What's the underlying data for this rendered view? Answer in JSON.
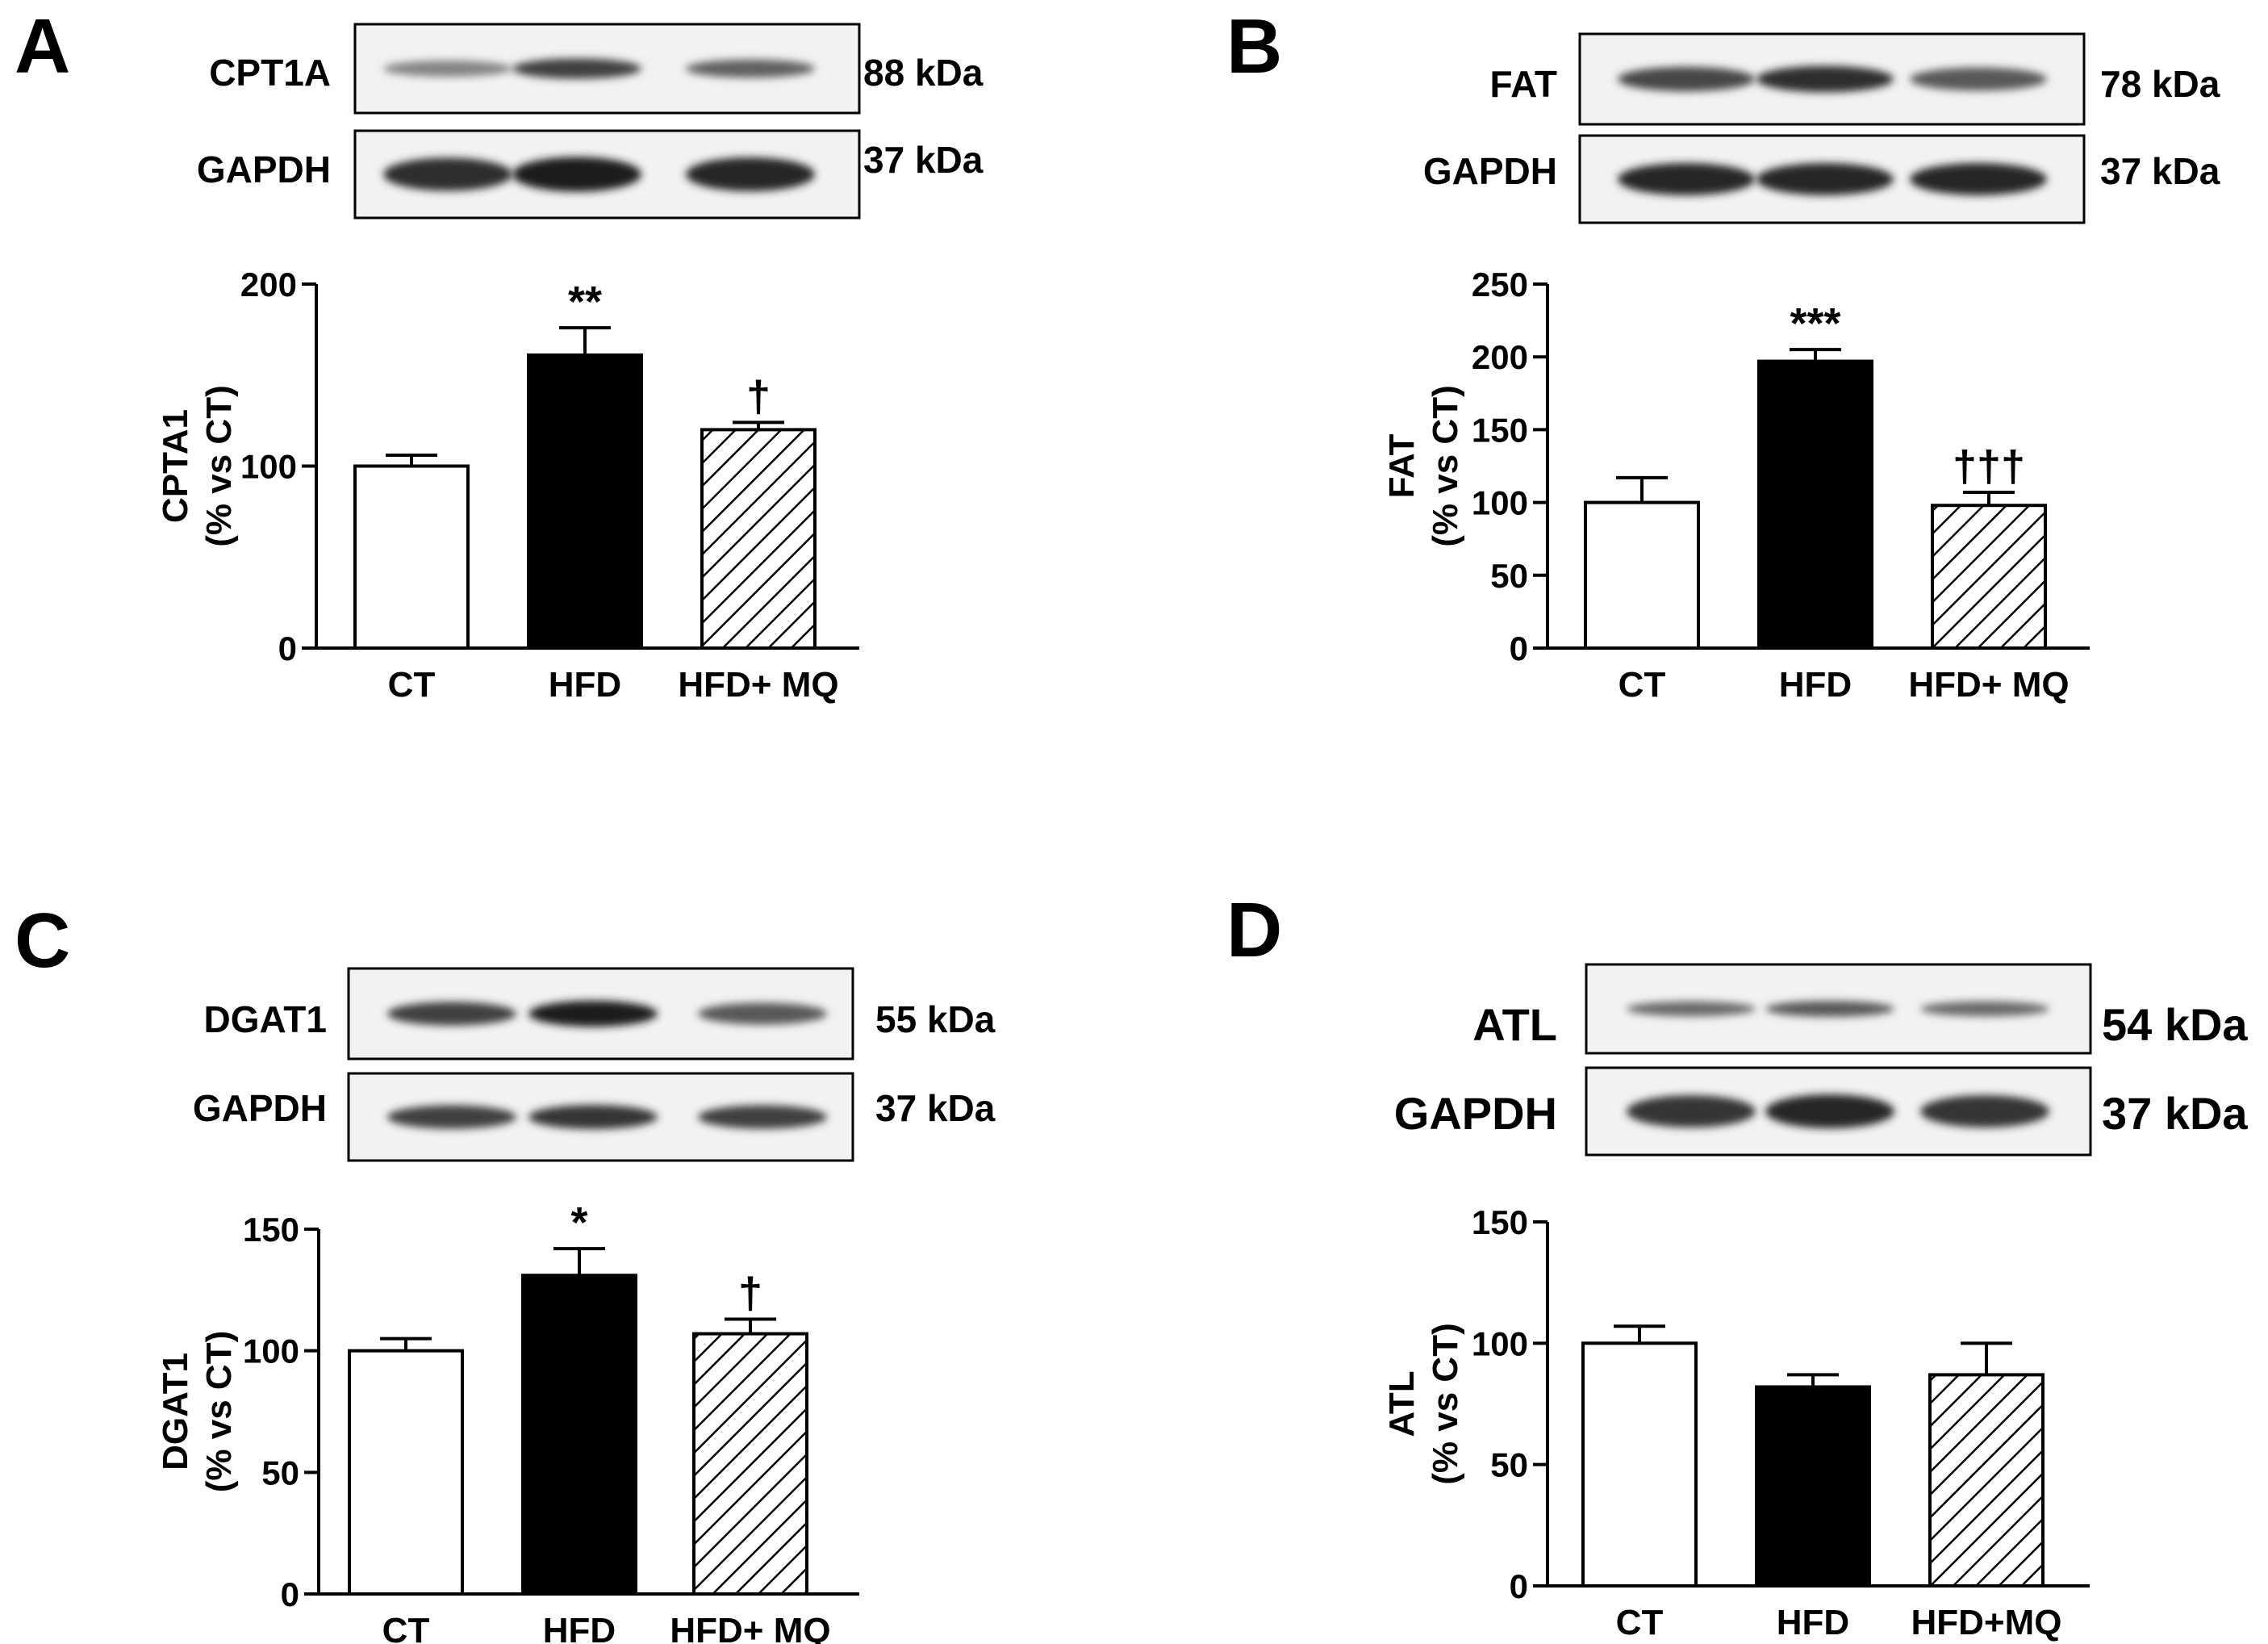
{
  "colors": {
    "ink": "#000000",
    "paper": "#ffffff",
    "blot_background": "#f2f2f2",
    "band": "#333333"
  },
  "panels": [
    {
      "letter": "A",
      "blots": [
        {
          "label": "CPT1A",
          "size": "88 kDa",
          "band_intensity": [
            0.35,
            0.75,
            0.55
          ]
        },
        {
          "label": "GAPDH",
          "size": "37 kDa",
          "band_intensity": [
            0.85,
            0.95,
            0.9
          ]
        }
      ]
    },
    {
      "letter": "B",
      "blots": [
        {
          "label": "FAT",
          "size": "78 kDa",
          "band_intensity": [
            0.7,
            0.85,
            0.6
          ]
        },
        {
          "label": "GAPDH",
          "size": "37 kDa",
          "band_intensity": [
            0.9,
            0.9,
            0.9
          ]
        }
      ]
    },
    {
      "letter": "C",
      "blots": [
        {
          "label": "DGAT1",
          "size": "55 kDa",
          "band_intensity": [
            0.75,
            0.95,
            0.6
          ]
        },
        {
          "label": "GAPDH",
          "size": "37 kDa",
          "band_intensity": [
            0.75,
            0.8,
            0.75
          ]
        }
      ]
    },
    {
      "letter": "D",
      "blots": [
        {
          "label": "ATL",
          "size": "54 kDa",
          "band_intensity": [
            0.5,
            0.6,
            0.5
          ]
        },
        {
          "label": "GAPDH",
          "size": "37 kDa",
          "band_intensity": [
            0.8,
            0.9,
            0.8
          ]
        }
      ]
    }
  ],
  "chart_data": [
    {
      "type": "bar",
      "panel": "A",
      "categories": [
        "CT",
        "HFD",
        "HFD+ MQ"
      ],
      "values": [
        100,
        161,
        120
      ],
      "errors": [
        6,
        15,
        4
      ],
      "fills": [
        "white",
        "black",
        "hatched"
      ],
      "significance": [
        "",
        "**",
        "†"
      ],
      "ylabel_line1": "CPTA1",
      "ylabel_line2": "(% vs CT)",
      "ylim": [
        0,
        200
      ],
      "yticks": [
        0,
        100,
        200
      ],
      "grid": false
    },
    {
      "type": "bar",
      "panel": "B",
      "categories": [
        "CT",
        "HFD",
        "HFD+ MQ"
      ],
      "values": [
        100,
        197,
        98
      ],
      "errors": [
        17,
        8,
        9
      ],
      "fills": [
        "white",
        "black",
        "hatched"
      ],
      "significance": [
        "",
        "***",
        "†††"
      ],
      "ylabel_line1": "FAT",
      "ylabel_line2": "(% vs CT)",
      "ylim": [
        0,
        250
      ],
      "yticks": [
        0,
        50,
        100,
        150,
        200,
        250
      ],
      "grid": false
    },
    {
      "type": "bar",
      "panel": "C",
      "categories": [
        "CT",
        "HFD",
        "HFD+ MQ"
      ],
      "values": [
        100,
        131,
        107
      ],
      "errors": [
        5,
        11,
        6
      ],
      "fills": [
        "white",
        "black",
        "hatched"
      ],
      "significance": [
        "",
        "*",
        "†"
      ],
      "ylabel_line1": "DGAT1",
      "ylabel_line2": "(% vs CT)",
      "ylim": [
        0,
        150
      ],
      "yticks": [
        0,
        50,
        100,
        150
      ],
      "grid": false
    },
    {
      "type": "bar",
      "panel": "D",
      "categories": [
        "CT",
        "HFD",
        "HFD+MQ"
      ],
      "values": [
        100,
        82,
        87
      ],
      "errors": [
        7,
        5,
        13
      ],
      "fills": [
        "white",
        "black",
        "hatched"
      ],
      "significance": [
        "",
        "",
        ""
      ],
      "ylabel_line1": "ATL",
      "ylabel_line2": "(% vs CT)",
      "ylim": [
        0,
        150
      ],
      "yticks": [
        0,
        50,
        100,
        150
      ],
      "grid": false
    }
  ]
}
